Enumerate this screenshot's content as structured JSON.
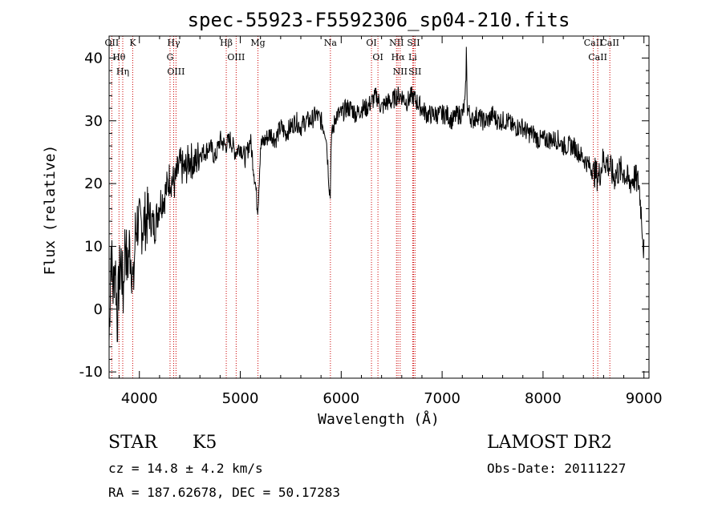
{
  "chart_data": {
    "type": "line",
    "title": "spec-55923-F5592306_sp04-210.fits",
    "xlabel": "Wavelength (Å)",
    "ylabel": "Flux (relative)",
    "xlim": [
      3700,
      9050
    ],
    "ylim": [
      -11,
      43.5
    ],
    "xticks": [
      4000,
      5000,
      6000,
      7000,
      8000,
      9000
    ],
    "yticks": [
      -10,
      0,
      10,
      20,
      30,
      40
    ],
    "grid": false,
    "series": [
      {
        "x": [
          3700,
          3720,
          3740,
          3760,
          3780,
          3800,
          3820,
          3840,
          3860,
          3880,
          3900,
          3920,
          3940,
          3960,
          3980,
          4000,
          4050,
          4100,
          4150,
          4200,
          4250,
          4300,
          4350,
          4400,
          4450,
          4500,
          4550,
          4600,
          4650,
          4700,
          4750,
          4800,
          4850,
          4900,
          4950,
          5000,
          5050,
          5100,
          5150,
          5170,
          5180,
          5200,
          5250,
          5300,
          5350,
          5400,
          5450,
          5500,
          5550,
          5600,
          5650,
          5700,
          5750,
          5800,
          5850,
          5880,
          5893,
          5900,
          5950,
          6000,
          6050,
          6100,
          6150,
          6200,
          6250,
          6300,
          6350,
          6400,
          6450,
          6500,
          6550,
          6600,
          6650,
          6700,
          6750,
          6800,
          6850,
          6900,
          6950,
          7000,
          7050,
          7100,
          7150,
          7200,
          7230,
          7240,
          7250,
          7300,
          7350,
          7400,
          7450,
          7500,
          7550,
          7600,
          7650,
          7700,
          7750,
          7800,
          7850,
          7900,
          7950,
          8000,
          8050,
          8100,
          8150,
          8200,
          8250,
          8300,
          8350,
          8400,
          8450,
          8500,
          8550,
          8600,
          8650,
          8700,
          8750,
          8800,
          8850,
          8900,
          8950,
          8980,
          9000
        ],
        "values": [
          -5,
          10,
          3,
          8,
          -2,
          5,
          8,
          2,
          12,
          6,
          10,
          8,
          3,
          12,
          14,
          13,
          14,
          15,
          13,
          17,
          18,
          21,
          20,
          23,
          22,
          24,
          23,
          25,
          25,
          26,
          24,
          27,
          26,
          27,
          25,
          26,
          24,
          27,
          20,
          16,
          18,
          26,
          27,
          28,
          27,
          29,
          28,
          29,
          30,
          29,
          30,
          30,
          31,
          30,
          28,
          20,
          18,
          27,
          31,
          31,
          32,
          32,
          31,
          32,
          32,
          33,
          34,
          32,
          33,
          33,
          34,
          34,
          33,
          34,
          33,
          32,
          31,
          31,
          31,
          31,
          31,
          30,
          31,
          31,
          33,
          41,
          32,
          30,
          31,
          30,
          30,
          31,
          30,
          30,
          30,
          29,
          29,
          29,
          28,
          28,
          27,
          27,
          27,
          27,
          27,
          26,
          26,
          26,
          25,
          24,
          23,
          22,
          21,
          24,
          23,
          21,
          22,
          22,
          20,
          21,
          20,
          14,
          9
        ]
      }
    ],
    "lines": [
      {
        "label": "OII",
        "x": 3727
      },
      {
        "label": "Hθ",
        "x": 3798
      },
      {
        "label": "Hη",
        "x": 3835
      },
      {
        "label": "K",
        "x": 3934
      },
      {
        "label": "Hγ",
        "x": 4340
      },
      {
        "label": "G",
        "x": 4304
      },
      {
        "label": "OIII",
        "x": 4363
      },
      {
        "label": "Hβ",
        "x": 4861
      },
      {
        "label": "OIII",
        "x": 4959
      },
      {
        "label": "Mg",
        "x": 5175
      },
      {
        "label": "Na",
        "x": 5893
      },
      {
        "label": "OI",
        "x": 6300
      },
      {
        "label": "OI",
        "x": 6364
      },
      {
        "label": "NII",
        "x": 6548
      },
      {
        "label": "Hα",
        "x": 6563
      },
      {
        "label": "NII",
        "x": 6584
      },
      {
        "label": "SII",
        "x": 6717
      },
      {
        "label": "Li",
        "x": 6708
      },
      {
        "label": "SII",
        "x": 6731
      },
      {
        "label": "CaII",
        "x": 8498
      },
      {
        "label": "CaII",
        "x": 8542
      },
      {
        "label": "CaII",
        "x": 8662
      }
    ]
  },
  "info": {
    "class": "STAR",
    "subclass": "K5",
    "survey": "LAMOST DR2",
    "cz": "cz = 14.8 ± 4.2 km/s",
    "obs_date": "Obs-Date: 20111227",
    "coords": "RA = 187.62678, DEC =  50.17283"
  }
}
